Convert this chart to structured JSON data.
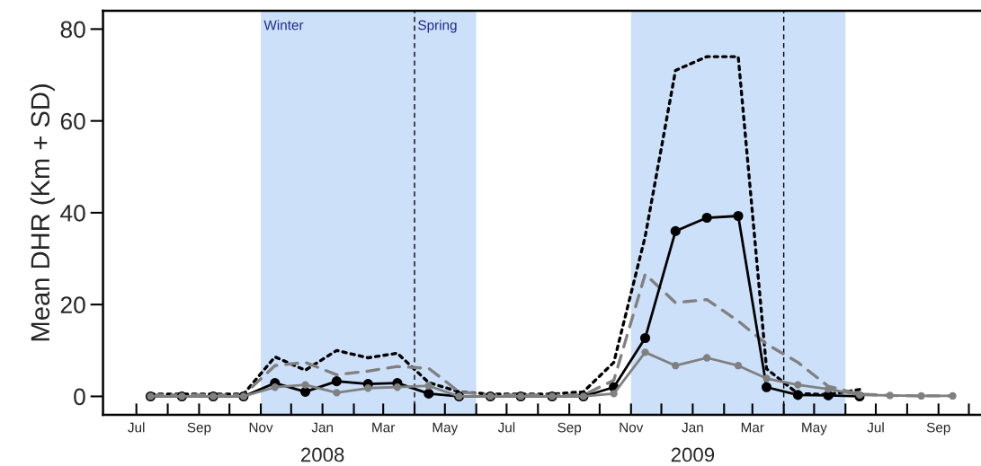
{
  "chart_data": {
    "type": "line",
    "ylabel": "Mean DHR (Km + SD)",
    "x": [
      "2007-07-15",
      "2007-08-15",
      "2007-09-15",
      "2007-10-15",
      "2007-11-15",
      "2007-12-15",
      "2008-01-15",
      "2008-02-15",
      "2008-03-15",
      "2008-04-15",
      "2008-05-15",
      "2008-06-15",
      "2008-07-15",
      "2008-08-15",
      "2008-09-15",
      "2008-10-15",
      "2008-11-15",
      "2008-12-15",
      "2009-01-15",
      "2009-02-15",
      "2009-03-15",
      "2009-04-15",
      "2009-05-15",
      "2009-06-15",
      "2009-07-15",
      "2009-08-15",
      "2009-09-15"
    ],
    "series": [
      {
        "color": "#000000",
        "line_style": "dotted",
        "marker": "none",
        "values": [
          0.5,
          0.5,
          0.5,
          0.5,
          8.6,
          5.7,
          10.0,
          8.4,
          9.4,
          3.0,
          1.0,
          0.5,
          0.5,
          0.5,
          1.0,
          7.4,
          34.8,
          71,
          74,
          74,
          6,
          0.6,
          0.4,
          1.5,
          null,
          null,
          null
        ]
      },
      {
        "color": "#808080",
        "line_style": "dashed",
        "marker": "none",
        "values": [
          0.3,
          0.3,
          0.3,
          0.3,
          6.7,
          7.4,
          4.7,
          5.5,
          6.5,
          6.1,
          1.0,
          0.3,
          0.3,
          0.3,
          0.3,
          3.5,
          26.6,
          20.4,
          21.1,
          16.4,
          11.4,
          7.4,
          2.2,
          0.5,
          0.2,
          0.1,
          0.1
        ]
      },
      {
        "color": "#000000",
        "line_style": "solid",
        "marker": "circle",
        "values": [
          0,
          0,
          0,
          0,
          2.9,
          1.0,
          3.3,
          2.7,
          2.9,
          0.6,
          0,
          0,
          0,
          0,
          0,
          2.0,
          12.7,
          36.0,
          38.9,
          39.3,
          2.0,
          0.3,
          0.2,
          0,
          null,
          null,
          null
        ]
      },
      {
        "color": "#808080",
        "line_style": "solid",
        "marker": "circle",
        "values": [
          0,
          0,
          0,
          0,
          2.0,
          2.5,
          0.8,
          1.8,
          2.0,
          2.3,
          0,
          0,
          0,
          0,
          0,
          0.6,
          9.6,
          6.7,
          8.4,
          6.7,
          3.9,
          2.5,
          1.6,
          0.3,
          0.2,
          0.1,
          0.1
        ]
      }
    ],
    "xlim": [
      "2007-05-29",
      "2009-10-13"
    ],
    "xticks": [
      {
        "value": "2007-07-01",
        "label": "Jul"
      },
      {
        "value": "2007-08-01",
        "label": null
      },
      {
        "value": "2007-09-01",
        "label": "Sep"
      },
      {
        "value": "2007-10-01",
        "label": null
      },
      {
        "value": "2007-11-01",
        "label": "Nov"
      },
      {
        "value": "2007-12-01",
        "label": null
      },
      {
        "value": "2008-01-01",
        "label": "Jan"
      },
      {
        "value": "2008-02-01",
        "label": null
      },
      {
        "value": "2008-03-01",
        "label": "Mar"
      },
      {
        "value": "2008-04-01",
        "label": null
      },
      {
        "value": "2008-05-01",
        "label": "May"
      },
      {
        "value": "2008-06-01",
        "label": null
      },
      {
        "value": "2008-07-01",
        "label": "Jul"
      },
      {
        "value": "2008-08-01",
        "label": null
      },
      {
        "value": "2008-09-01",
        "label": "Sep"
      },
      {
        "value": "2008-10-01",
        "label": null
      },
      {
        "value": "2008-11-01",
        "label": "Nov"
      },
      {
        "value": "2008-12-01",
        "label": null
      },
      {
        "value": "2009-01-01",
        "label": "Jan"
      },
      {
        "value": "2009-02-01",
        "label": null
      },
      {
        "value": "2009-03-01",
        "label": "Mar"
      },
      {
        "value": "2009-04-01",
        "label": null
      },
      {
        "value": "2009-05-01",
        "label": "May"
      },
      {
        "value": "2009-06-01",
        "label": null
      },
      {
        "value": "2009-07-01",
        "label": "Jul"
      },
      {
        "value": "2009-08-01",
        "label": null
      },
      {
        "value": "2009-09-01",
        "label": "Sep"
      },
      {
        "value": "2009-10-01",
        "label": null
      }
    ],
    "ylim": [
      -4,
      84
    ],
    "yticks": [
      0,
      20,
      40,
      60,
      80
    ],
    "bands": [
      {
        "axis": "x",
        "from": "2007-11-01",
        "to": "2008-04-01",
        "label": "Winter",
        "color": "#cce0fa"
      },
      {
        "axis": "x",
        "from": "2008-04-01",
        "to": "2008-06-01",
        "label": "Spring",
        "color": "#cce0fa"
      },
      {
        "axis": "x",
        "from": "2008-11-01",
        "to": "2009-04-01",
        "color": "#cce0fa"
      },
      {
        "axis": "x",
        "from": "2009-04-01",
        "to": "2009-06-01",
        "color": "#cce0fa"
      }
    ],
    "ref_lines": [
      {
        "axis": "x",
        "value": "2008-04-01",
        "color": "#000000",
        "line_style": "dashed"
      },
      {
        "axis": "x",
        "value": "2009-04-01",
        "color": "#000000",
        "line_style": "dashed"
      }
    ],
    "annotations": [
      "2008",
      "2009"
    ],
    "grid": false
  }
}
